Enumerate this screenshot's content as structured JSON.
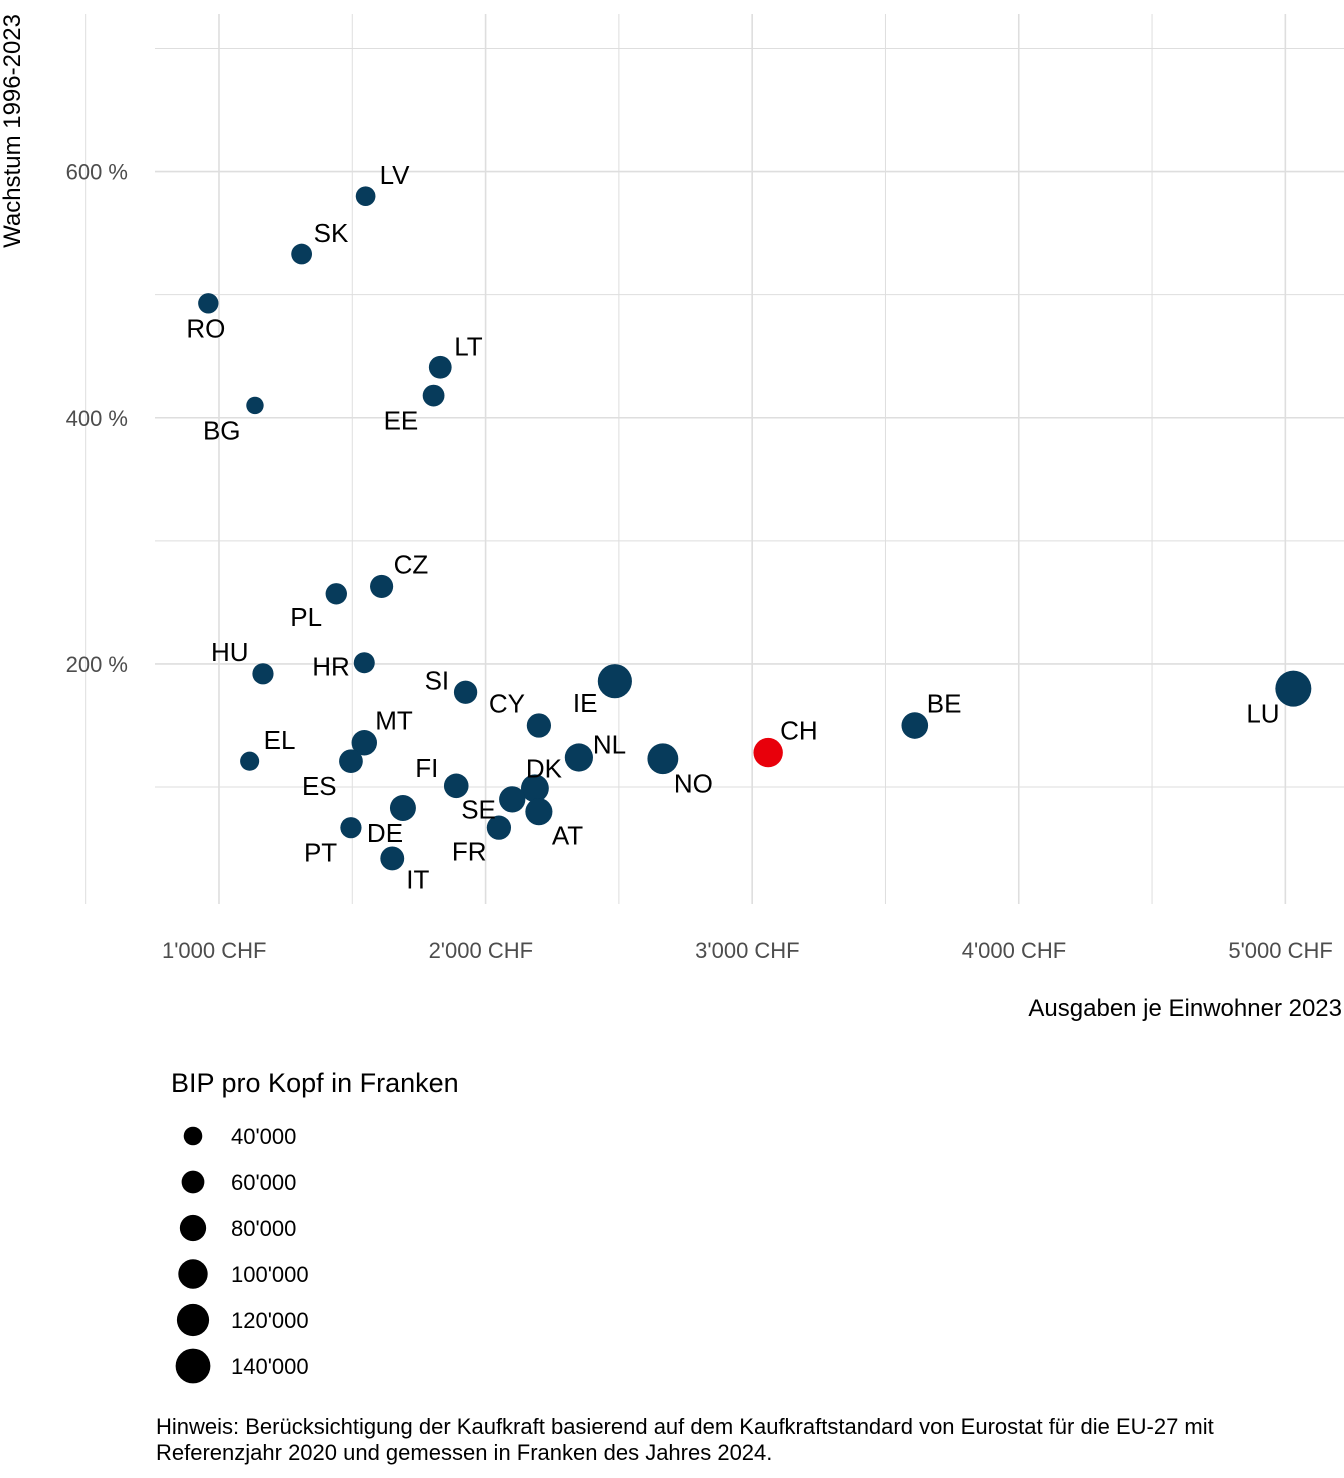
{
  "chart_data": {
    "type": "scatter",
    "xlabel": "Ausgaben je Einwohner 2023",
    "ylabel": "Wachstum 1996-2023",
    "x_ticks": [
      "1'000 CHF",
      "2'000 CHF",
      "3'000 CHF",
      "4'000 CHF",
      "5'000 CHF"
    ],
    "x_tick_values": [
      1000,
      2000,
      3000,
      4000,
      5000
    ],
    "y_ticks": [
      "200 %",
      "400 %",
      "600 %"
    ],
    "y_tick_values": [
      200,
      400,
      600
    ],
    "xlim": [
      760,
      5220
    ],
    "ylim": [
      5,
      728
    ],
    "grid": true,
    "highlight_color": "#e8000b",
    "point_color": "#073b5b",
    "size_legend": {
      "title": "BIP pro Kopf in Franken",
      "labels": [
        "40'000",
        "60'000",
        "80'000",
        "100'000",
        "120'000",
        "140'000"
      ],
      "values": [
        40000,
        60000,
        80000,
        100000,
        120000,
        140000
      ]
    },
    "points": [
      {
        "label": "LV",
        "x": 1550,
        "y": 580,
        "size": 45000
      },
      {
        "label": "SK",
        "x": 1310,
        "y": 533,
        "size": 50000
      },
      {
        "label": "RO",
        "x": 960,
        "y": 493,
        "size": 48000
      },
      {
        "label": "LT",
        "x": 1830,
        "y": 441,
        "size": 60000
      },
      {
        "label": "EE",
        "x": 1805,
        "y": 418,
        "size": 55000
      },
      {
        "label": "BG",
        "x": 1135,
        "y": 410,
        "size": 35000
      },
      {
        "label": "CZ",
        "x": 1610,
        "y": 263,
        "size": 62000
      },
      {
        "label": "PL",
        "x": 1440,
        "y": 257,
        "size": 53000
      },
      {
        "label": "HU",
        "x": 1165,
        "y": 192,
        "size": 52000
      },
      {
        "label": "HR",
        "x": 1545,
        "y": 201,
        "size": 51000
      },
      {
        "label": "SI",
        "x": 1925,
        "y": 177,
        "size": 63000
      },
      {
        "label": "IE",
        "x": 2485,
        "y": 186,
        "size": 135000
      },
      {
        "label": "CY",
        "x": 2200,
        "y": 150,
        "size": 68000
      },
      {
        "label": "MT",
        "x": 1545,
        "y": 136,
        "size": 75000
      },
      {
        "label": "EL",
        "x": 1115,
        "y": 121,
        "size": 42000
      },
      {
        "label": "ES",
        "x": 1495,
        "y": 121,
        "size": 65000
      },
      {
        "label": "NL",
        "x": 2350,
        "y": 124,
        "size": 92000
      },
      {
        "label": "NO",
        "x": 2665,
        "y": 123,
        "size": 110000
      },
      {
        "label": "CH",
        "x": 3060,
        "y": 128,
        "size": 100000
      },
      {
        "label": "BE",
        "x": 3610,
        "y": 150,
        "size": 82000
      },
      {
        "label": "LU",
        "x": 5030,
        "y": 180,
        "size": 150000
      },
      {
        "label": "FI",
        "x": 1890,
        "y": 101,
        "size": 70000
      },
      {
        "label": "DK",
        "x": 2185,
        "y": 99,
        "size": 90000
      },
      {
        "label": "SE",
        "x": 2100,
        "y": 90,
        "size": 80000
      },
      {
        "label": "AT",
        "x": 2200,
        "y": 80,
        "size": 85000
      },
      {
        "label": "DE",
        "x": 1690,
        "y": 83,
        "size": 78000
      },
      {
        "label": "FR",
        "x": 2050,
        "y": 67,
        "size": 68000
      },
      {
        "label": "PT",
        "x": 1495,
        "y": 67,
        "size": 52000
      },
      {
        "label": "IT",
        "x": 1650,
        "y": 42,
        "size": 66000
      }
    ],
    "highlight_label": "CH"
  },
  "note": "Hinweis: Berücksichtigung der Kaufkraft basierend auf dem Kaufkraftstandard von Eurostat für die EU-27 mit Referenzjahr 2020 und gemessen in Franken des Jahres 2024."
}
